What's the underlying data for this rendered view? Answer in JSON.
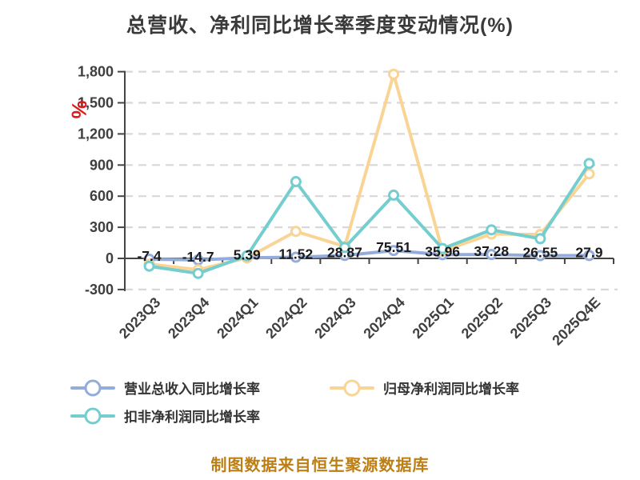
{
  "title": "总营收、净利同比增长率季度变动情况(%)",
  "source_note": "制图数据来自恒生聚源数据库",
  "colors": {
    "title": "#3a3a3a",
    "axis": "#444444",
    "gridline": "#d8d8d8",
    "tick_label": "#3f3f3f",
    "data_label": "#1a1a1a",
    "unit_label": "#de1a1a",
    "source_note": "#bd7f14",
    "legend_text": "#333333",
    "marker_fill": "#ffffff"
  },
  "chart_data": {
    "type": "line",
    "title": "总营收、净利同比增长率季度变动情况(%)",
    "y_axis_unit": "%",
    "categories": [
      "2023Q3",
      "2023Q4",
      "2024Q1",
      "2024Q2",
      "2024Q3",
      "2024Q4",
      "2025Q1",
      "2025Q2",
      "2025Q3",
      "2025Q4E"
    ],
    "series": [
      {
        "key": "revenue-yoy",
        "name": "营业总收入同比增长率",
        "color": "#93acdc",
        "values": [
          -7.4,
          -14.7,
          5.39,
          11.52,
          28.87,
          75.51,
          35.96,
          37.28,
          26.55,
          27.9
        ],
        "labels_shown": true
      },
      {
        "key": "net-profit-yoy",
        "name": "归母净利润同比增长率",
        "color": "#fad494",
        "values": [
          -55,
          -110,
          5,
          260,
          115,
          1775,
          70,
          235,
          230,
          815
        ],
        "labels_shown": false
      },
      {
        "key": "non-gaap-net-profit-yoy",
        "name": "扣非净利润同比增长率",
        "color": "#74cdce",
        "values": [
          -75,
          -145,
          25,
          740,
          105,
          610,
          95,
          275,
          190,
          915
        ],
        "labels_shown": false
      }
    ],
    "data_labels": [
      "-7.4",
      "-14.7",
      "5.39",
      "11.52",
      "28.87",
      "75.51",
      "35.96",
      "37.28",
      "26.55",
      "27.9"
    ],
    "ylim": [
      -300,
      1800
    ],
    "ytick_step": 300,
    "ytick_labels": [
      "-300",
      "0",
      "300",
      "600",
      "900",
      "1,200",
      "1,500",
      "1,800"
    ],
    "grid": "horizontal-dashed",
    "legend_position": "bottom-left"
  }
}
